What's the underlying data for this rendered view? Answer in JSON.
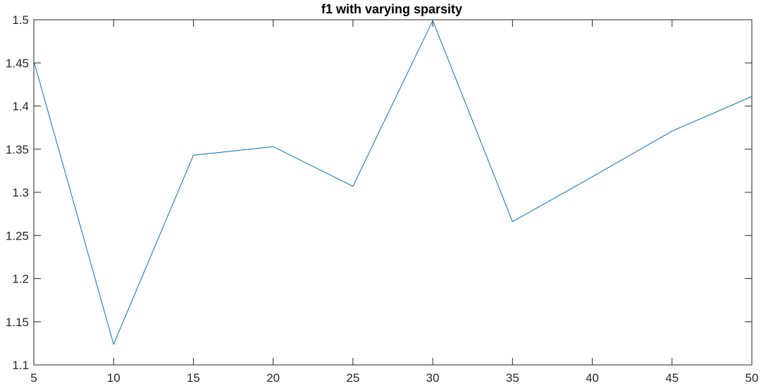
{
  "chart_data": {
    "type": "line",
    "title": "f1 with varying sparsity",
    "xlabel": "",
    "ylabel": "",
    "xlim": [
      5,
      50
    ],
    "ylim": [
      1.1,
      1.5
    ],
    "xticks": [
      5,
      10,
      15,
      20,
      25,
      30,
      35,
      40,
      45,
      50
    ],
    "yticks": [
      1.1,
      1.15,
      1.2,
      1.25,
      1.3,
      1.35,
      1.4,
      1.45,
      1.5
    ],
    "x_tick_labels": [
      "5",
      "10",
      "15",
      "20",
      "25",
      "30",
      "35",
      "40",
      "45",
      "50"
    ],
    "y_tick_labels": [
      "1.1",
      "1.15",
      "1.2",
      "1.25",
      "1.3",
      "1.35",
      "1.4",
      "1.45",
      "1.5"
    ],
    "grid": false,
    "series": [
      {
        "color": "#0072BD",
        "x": [
          5,
          10,
          15,
          20,
          25,
          30,
          35,
          40,
          45,
          50
        ],
        "y": [
          1.452,
          1.124,
          1.343,
          1.353,
          1.307,
          1.499,
          1.266,
          1.318,
          1.371,
          1.411
        ]
      }
    ]
  }
}
